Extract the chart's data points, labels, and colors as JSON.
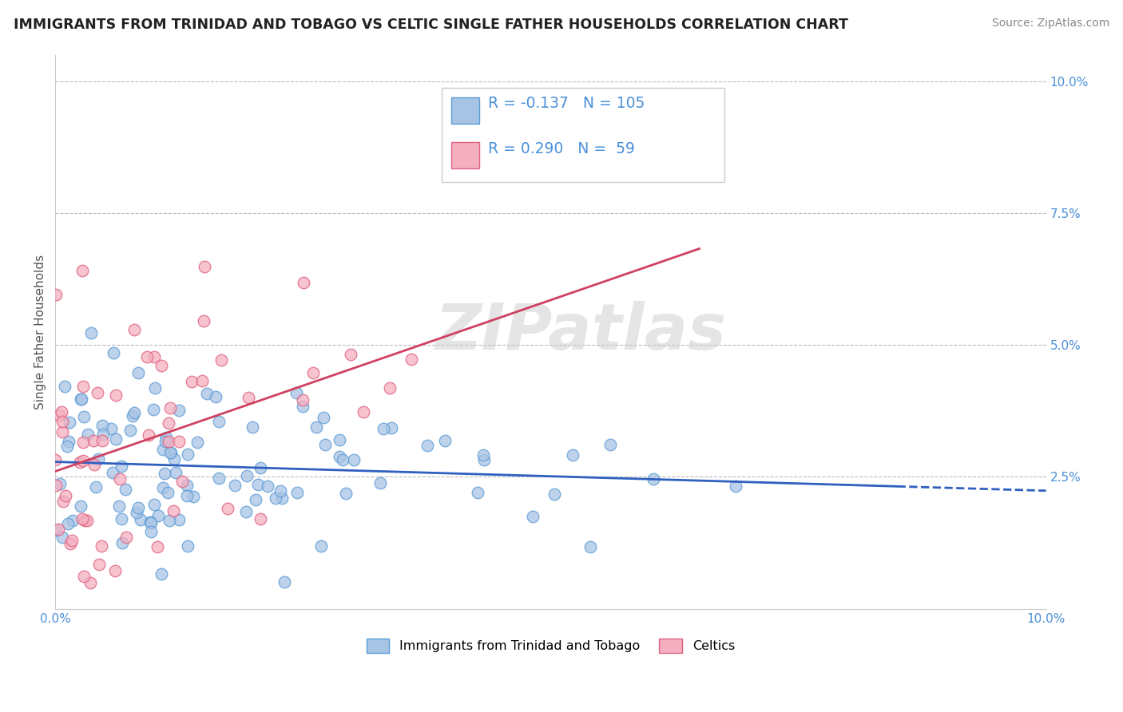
{
  "title": "IMMIGRANTS FROM TRINIDAD AND TOBAGO VS CELTIC SINGLE FATHER HOUSEHOLDS CORRELATION CHART",
  "source": "Source: ZipAtlas.com",
  "ylabel": "Single Father Households",
  "xlim": [
    0.0,
    0.1
  ],
  "ylim": [
    0.0,
    0.105
  ],
  "yticks": [
    0.0,
    0.025,
    0.05,
    0.075,
    0.1
  ],
  "ytick_labels": [
    "",
    "2.5%",
    "5.0%",
    "7.5%",
    "10.0%"
  ],
  "xticks": [
    0.0,
    0.025,
    0.05,
    0.075,
    0.1
  ],
  "xtick_labels": [
    "0.0%",
    "",
    "",
    "",
    "10.0%"
  ],
  "blue_fill": "#a8c4e5",
  "blue_edge": "#5b9bd5",
  "pink_fill": "#f4afc0",
  "pink_edge": "#e06080",
  "blue_line_color": "#3060c0",
  "pink_line_color": "#d04060",
  "blue_R": "-0.137",
  "blue_N": "105",
  "pink_R": "0.290",
  "pink_N": "59",
  "legend_label_blue": "Immigrants from Trinidad and Tobago",
  "legend_label_pink": "Celtics",
  "watermark": "ZIPatlas",
  "bg": "#ffffff",
  "n_blue": 105,
  "n_pink": 59
}
